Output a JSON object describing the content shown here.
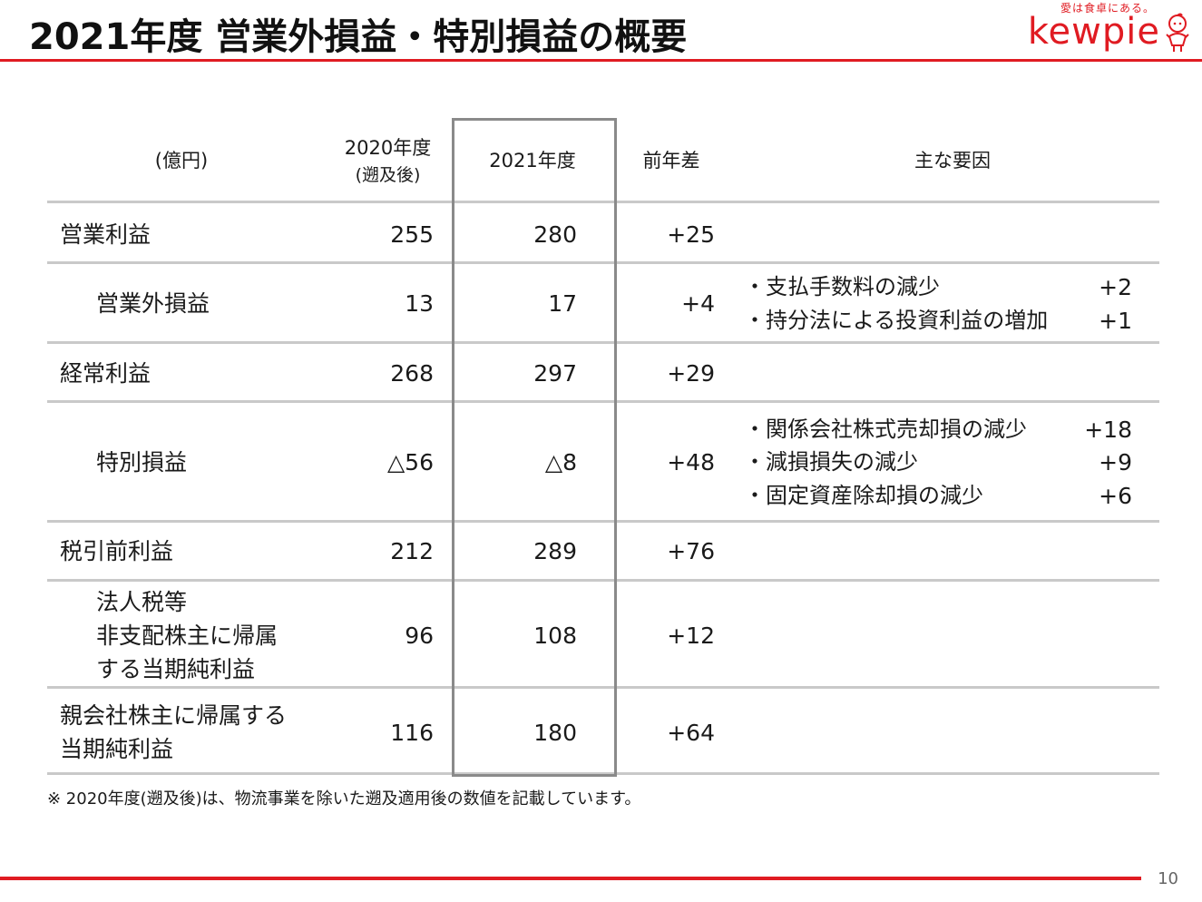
{
  "title": "2021年度 営業外損益・特別損益の概要",
  "logo": {
    "tagline": "愛は食卓にある。",
    "brand": "kewpie"
  },
  "brand_color": "#e01b22",
  "header": {
    "unit": "(億円)",
    "col_2020": "2020年度",
    "col_2020_sub": "(遡及後)",
    "col_2021": "2021年度",
    "col_diff": "前年差",
    "col_reason": "主な要因"
  },
  "rows": [
    {
      "label": "営業利益",
      "v2020": "255",
      "v2021": "280",
      "diff": "+25"
    },
    {
      "label": "営業外損益",
      "v2020": "13",
      "v2021": "17",
      "diff": "+4",
      "reasons": [
        {
          "text": "・支払手数料の減少",
          "value": "+2"
        },
        {
          "text": "・持分法による投資利益の増加",
          "value": "+1"
        }
      ]
    },
    {
      "label": "経常利益",
      "v2020": "268",
      "v2021": "297",
      "diff": "+29"
    },
    {
      "label": "特別損益",
      "v2020": "△56",
      "v2021": "△8",
      "diff": "+48",
      "reasons": [
        {
          "text": "・関係会社株式売却損の減少",
          "value": "+18"
        },
        {
          "text": "・減損損失の減少",
          "value": "+9"
        },
        {
          "text": "・固定資産除却損の減少",
          "value": "+6"
        }
      ]
    },
    {
      "label": "税引前利益",
      "v2020": "212",
      "v2021": "289",
      "diff": "+76"
    },
    {
      "label_lines": [
        "法人税等",
        "非支配株主に帰属",
        "する当期純利益"
      ],
      "v2020": "96",
      "v2021": "108",
      "diff": "+12"
    },
    {
      "label_lines": [
        "親会社株主に帰属する",
        "当期純利益"
      ],
      "v2020": "116",
      "v2021": "180",
      "diff": "+64"
    }
  ],
  "footnote": "※ 2020年度(遡及後)は、物流事業を除いた遡及適用後の数値を記載しています。",
  "page_number": "10"
}
